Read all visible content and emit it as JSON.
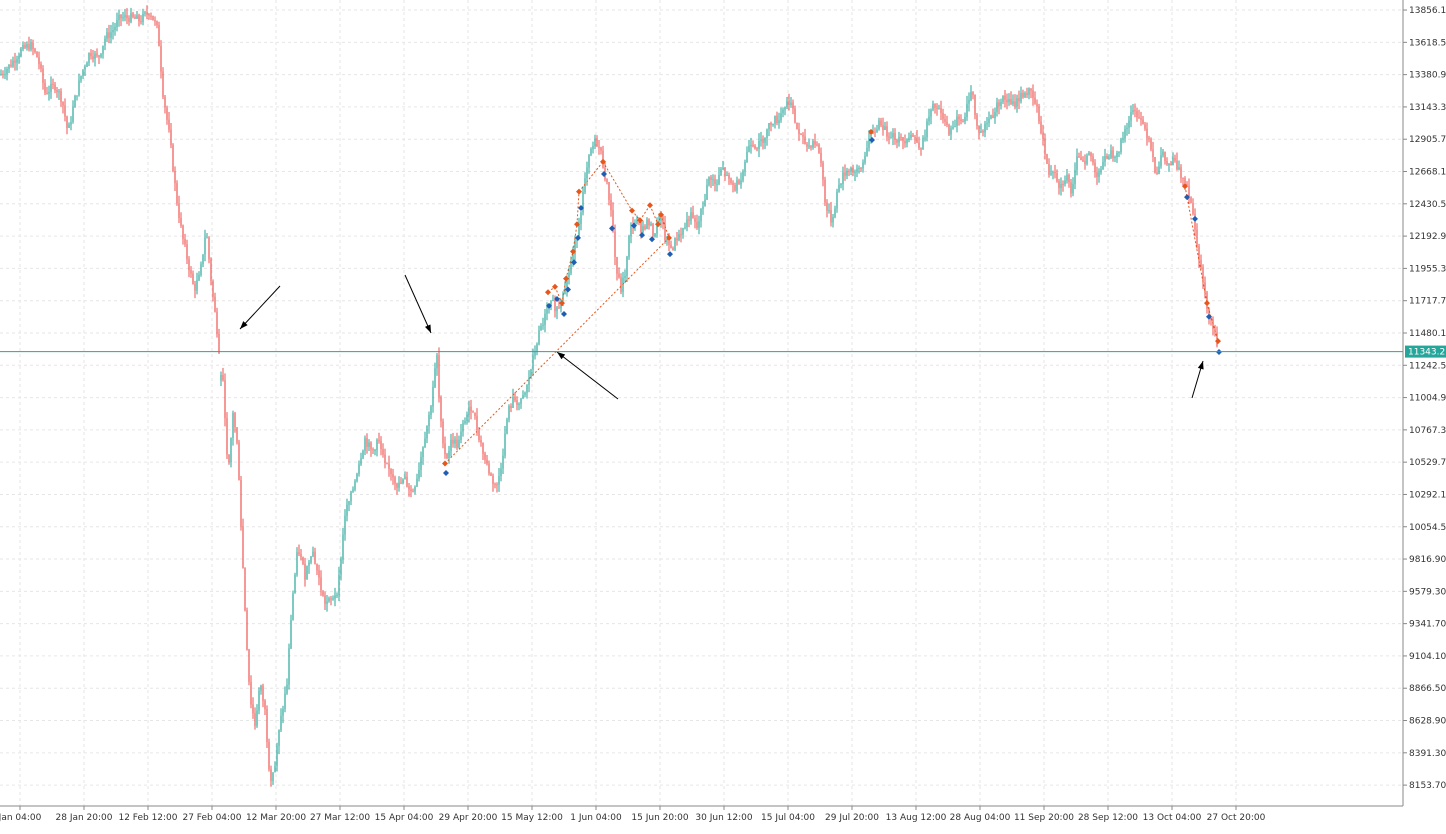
{
  "chart_data": {
    "type": "candlestick",
    "colors": {
      "bull": "#26a69a",
      "bear": "#ef5350",
      "grid": "#e6e6e6",
      "axis": "#888888",
      "price_line": "#26a69a",
      "signal_buy": "#1e5fb4",
      "signal_sell": "#e8561c",
      "arrow": "#000000"
    },
    "ylim": [
      8000,
      13930
    ],
    "y_ticks": [
      "13856.10",
      "13618.50",
      "13380.90",
      "13143.30",
      "12905.70",
      "12668.10",
      "12430.50",
      "12192.90",
      "11955.30",
      "11717.70",
      "11480.10",
      "11242.50",
      "11004.90",
      "10767.30",
      "10529.70",
      "10292.10",
      "10054.50",
      "9816.90",
      "9579.30",
      "9341.70",
      "9104.10",
      "8866.50",
      "8628.90",
      "8391.30",
      "8153.70"
    ],
    "x_ticks": [
      "Jan 04:00",
      "28 Jan 20:00",
      "12 Feb 12:00",
      "27 Feb 04:00",
      "12 Mar 20:00",
      "27 Mar 12:00",
      "15 Apr 04:00",
      "29 Apr 20:00",
      "15 May 12:00",
      "1 Jun 04:00",
      "15 Jun 20:00",
      "30 Jun 12:00",
      "15 Jul 04:00",
      "29 Jul 20:00",
      "13 Aug 12:00",
      "28 Aug 04:00",
      "11 Sep 20:00",
      "28 Sep 12:00",
      "13 Oct 04:00",
      "27 Oct 20:00"
    ],
    "current_price": 11343.21,
    "current_price_label": "11343.21",
    "price_path": [
      [
        0,
        13380
      ],
      [
        10,
        13450
      ],
      [
        20,
        13550
      ],
      [
        30,
        13600
      ],
      [
        38,
        13500
      ],
      [
        45,
        13250
      ],
      [
        55,
        13300
      ],
      [
        62,
        13200
      ],
      [
        68,
        12950
      ],
      [
        75,
        13200
      ],
      [
        82,
        13400
      ],
      [
        90,
        13550
      ],
      [
        98,
        13500
      ],
      [
        105,
        13650
      ],
      [
        112,
        13700
      ],
      [
        120,
        13800
      ],
      [
        130,
        13800
      ],
      [
        140,
        13780
      ],
      [
        150,
        13850
      ],
      [
        158,
        13700
      ],
      [
        163,
        13250
      ],
      [
        170,
        12900
      ],
      [
        176,
        12500
      ],
      [
        182,
        12200
      ],
      [
        188,
        12000
      ],
      [
        194,
        11800
      ],
      [
        200,
        11900
      ],
      [
        206,
        12250
      ],
      [
        212,
        11800
      ],
      [
        218,
        11450
      ],
      [
        221,
        11200
      ],
      [
        224,
        11050
      ],
      [
        228,
        10400
      ],
      [
        233,
        10900
      ],
      [
        238,
        10600
      ],
      [
        242,
        9900
      ],
      [
        246,
        9300
      ],
      [
        250,
        8800
      ],
      [
        255,
        8600
      ],
      [
        260,
        8900
      ],
      [
        265,
        8700
      ],
      [
        270,
        8200
      ],
      [
        275,
        8300
      ],
      [
        280,
        8600
      ],
      [
        287,
        8900
      ],
      [
        292,
        9500
      ],
      [
        298,
        9900
      ],
      [
        305,
        9700
      ],
      [
        312,
        9900
      ],
      [
        318,
        9700
      ],
      [
        324,
        9500
      ],
      [
        330,
        9500
      ],
      [
        338,
        9600
      ],
      [
        345,
        10150
      ],
      [
        352,
        10300
      ],
      [
        358,
        10500
      ],
      [
        365,
        10700
      ],
      [
        372,
        10600
      ],
      [
        378,
        10700
      ],
      [
        385,
        10500
      ],
      [
        392,
        10450
      ],
      [
        398,
        10350
      ],
      [
        405,
        10400
      ],
      [
        412,
        10300
      ],
      [
        418,
        10450
      ],
      [
        424,
        10700
      ],
      [
        430,
        10900
      ],
      [
        434,
        11150
      ],
      [
        437,
        11300
      ],
      [
        440,
        10850
      ],
      [
        446,
        10550
      ],
      [
        452,
        10700
      ],
      [
        458,
        10650
      ],
      [
        465,
        10850
      ],
      [
        472,
        10950
      ],
      [
        478,
        10750
      ],
      [
        485,
        10550
      ],
      [
        492,
        10400
      ],
      [
        497,
        10350
      ],
      [
        502,
        10550
      ],
      [
        508,
        10900
      ],
      [
        514,
        11000
      ],
      [
        520,
        10950
      ],
      [
        526,
        11050
      ],
      [
        532,
        11250
      ],
      [
        538,
        11450
      ],
      [
        545,
        11600
      ],
      [
        552,
        11700
      ],
      [
        558,
        11650
      ],
      [
        563,
        11800
      ],
      [
        568,
        11900
      ],
      [
        573,
        12050
      ],
      [
        578,
        12250
      ],
      [
        584,
        12550
      ],
      [
        590,
        12800
      ],
      [
        596,
        12900
      ],
      [
        601,
        12800
      ],
      [
        606,
        12600
      ],
      [
        611,
        12400
      ],
      [
        616,
        11950
      ],
      [
        621,
        11800
      ],
      [
        626,
        11950
      ],
      [
        630,
        12250
      ],
      [
        636,
        12300
      ],
      [
        642,
        12250
      ],
      [
        648,
        12300
      ],
      [
        654,
        12200
      ],
      [
        660,
        12350
      ],
      [
        666,
        12150
      ],
      [
        672,
        12100
      ],
      [
        678,
        12200
      ],
      [
        684,
        12250
      ],
      [
        690,
        12350
      ],
      [
        697,
        12250
      ],
      [
        704,
        12450
      ],
      [
        710,
        12650
      ],
      [
        716,
        12550
      ],
      [
        722,
        12700
      ],
      [
        728,
        12600
      ],
      [
        735,
        12550
      ],
      [
        742,
        12650
      ],
      [
        750,
        12900
      ],
      [
        758,
        12850
      ],
      [
        766,
        12950
      ],
      [
        772,
        13050
      ],
      [
        778,
        13050
      ],
      [
        784,
        13150
      ],
      [
        790,
        13200
      ],
      [
        796,
        13000
      ],
      [
        802,
        12900
      ],
      [
        808,
        12850
      ],
      [
        814,
        12900
      ],
      [
        820,
        12800
      ],
      [
        826,
        12400
      ],
      [
        832,
        12300
      ],
      [
        838,
        12550
      ],
      [
        844,
        12650
      ],
      [
        850,
        12700
      ],
      [
        856,
        12650
      ],
      [
        862,
        12700
      ],
      [
        868,
        12900
      ],
      [
        874,
        12950
      ],
      [
        880,
        13050
      ],
      [
        886,
        12950
      ],
      [
        892,
        12950
      ],
      [
        898,
        12900
      ],
      [
        904,
        12900
      ],
      [
        910,
        12950
      ],
      [
        916,
        12900
      ],
      [
        922,
        12850
      ],
      [
        928,
        13050
      ],
      [
        934,
        13150
      ],
      [
        940,
        13100
      ],
      [
        946,
        13000
      ],
      [
        952,
        12950
      ],
      [
        958,
        13100
      ],
      [
        964,
        13000
      ],
      [
        968,
        13200
      ],
      [
        972,
        13300
      ],
      [
        976,
        13000
      ],
      [
        982,
        12950
      ],
      [
        988,
        13050
      ],
      [
        994,
        13100
      ],
      [
        1000,
        13200
      ],
      [
        1006,
        13200
      ],
      [
        1012,
        13150
      ],
      [
        1018,
        13200
      ],
      [
        1024,
        13250
      ],
      [
        1030,
        13250
      ],
      [
        1036,
        13150
      ],
      [
        1042,
        12950
      ],
      [
        1048,
        12650
      ],
      [
        1054,
        12700
      ],
      [
        1060,
        12550
      ],
      [
        1066,
        12650
      ],
      [
        1072,
        12500
      ],
      [
        1078,
        12800
      ],
      [
        1084,
        12750
      ],
      [
        1090,
        12800
      ],
      [
        1096,
        12650
      ],
      [
        1102,
        12700
      ],
      [
        1108,
        12800
      ],
      [
        1114,
        12800
      ],
      [
        1120,
        12850
      ],
      [
        1126,
        13000
      ],
      [
        1132,
        13100
      ],
      [
        1138,
        13100
      ],
      [
        1144,
        13000
      ],
      [
        1150,
        12900
      ],
      [
        1156,
        12650
      ],
      [
        1162,
        12800
      ],
      [
        1168,
        12700
      ],
      [
        1174,
        12750
      ],
      [
        1180,
        12650
      ],
      [
        1186,
        12600
      ],
      [
        1191,
        12450
      ],
      [
        1196,
        12200
      ],
      [
        1201,
        11950
      ],
      [
        1206,
        11700
      ],
      [
        1210,
        11600
      ],
      [
        1214,
        11500
      ],
      [
        1218,
        11380
      ]
    ],
    "signals": [
      {
        "x": 548,
        "y": 11780,
        "side": "sell"
      },
      {
        "x": 549,
        "y": 11680,
        "side": "buy"
      },
      {
        "x": 555,
        "y": 11820,
        "side": "sell"
      },
      {
        "x": 557,
        "y": 11730,
        "side": "buy"
      },
      {
        "x": 562,
        "y": 11700,
        "side": "sell"
      },
      {
        "x": 564,
        "y": 11620,
        "side": "buy"
      },
      {
        "x": 566,
        "y": 11880,
        "side": "sell"
      },
      {
        "x": 568,
        "y": 11800,
        "side": "buy"
      },
      {
        "x": 573,
        "y": 12080,
        "side": "sell"
      },
      {
        "x": 574,
        "y": 12000,
        "side": "buy"
      },
      {
        "x": 577,
        "y": 12280,
        "side": "sell"
      },
      {
        "x": 578,
        "y": 12180,
        "side": "buy"
      },
      {
        "x": 579,
        "y": 12520,
        "side": "sell"
      },
      {
        "x": 581,
        "y": 12400,
        "side": "buy"
      },
      {
        "x": 603,
        "y": 12740,
        "side": "sell"
      },
      {
        "x": 604,
        "y": 12650,
        "side": "buy"
      },
      {
        "x": 612,
        "y": 12250,
        "side": "buy"
      },
      {
        "x": 632,
        "y": 12380,
        "side": "sell"
      },
      {
        "x": 634,
        "y": 12270,
        "side": "buy"
      },
      {
        "x": 640,
        "y": 12310,
        "side": "sell"
      },
      {
        "x": 642,
        "y": 12200,
        "side": "buy"
      },
      {
        "x": 650,
        "y": 12420,
        "side": "sell"
      },
      {
        "x": 652,
        "y": 12170,
        "side": "buy"
      },
      {
        "x": 658,
        "y": 12280,
        "side": "sell"
      },
      {
        "x": 661,
        "y": 12350,
        "side": "sell"
      },
      {
        "x": 669,
        "y": 12180,
        "side": "sell"
      },
      {
        "x": 670,
        "y": 12060,
        "side": "buy"
      },
      {
        "x": 445,
        "y": 10520,
        "side": "sell"
      },
      {
        "x": 446,
        "y": 10450,
        "side": "buy"
      },
      {
        "x": 871,
        "y": 12960,
        "side": "sell"
      },
      {
        "x": 872,
        "y": 12900,
        "side": "buy"
      },
      {
        "x": 1185,
        "y": 12560,
        "side": "sell"
      },
      {
        "x": 1187,
        "y": 12480,
        "side": "buy"
      },
      {
        "x": 1195,
        "y": 12320,
        "side": "buy"
      },
      {
        "x": 1207,
        "y": 11700,
        "side": "sell"
      },
      {
        "x": 1209,
        "y": 11600,
        "side": "buy"
      },
      {
        "x": 1218,
        "y": 11420,
        "side": "sell"
      },
      {
        "x": 1219,
        "y": 11340,
        "side": "buy"
      }
    ],
    "arrows": [
      {
        "from": [
          280,
          286
        ],
        "to": [
          240,
          329
        ]
      },
      {
        "from": [
          405,
          275
        ],
        "to": [
          431,
          333
        ]
      },
      {
        "from": [
          618,
          399
        ],
        "to": [
          557,
          352
        ]
      },
      {
        "from": [
          1192,
          398
        ],
        "to": [
          1203,
          361
        ]
      }
    ]
  }
}
